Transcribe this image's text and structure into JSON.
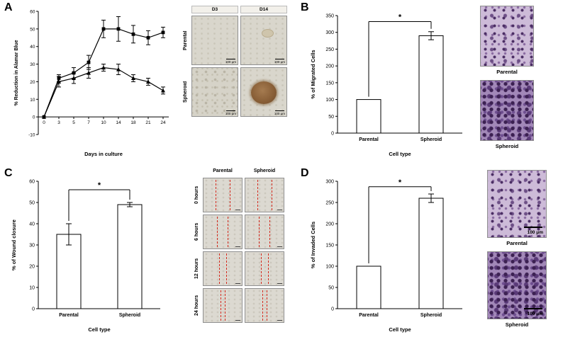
{
  "figure": {
    "panel_labels": {
      "A": "A",
      "B": "B",
      "C": "C",
      "D": "D"
    },
    "panels": {
      "A": {
        "micrographs": {
          "col_headers": [
            "D3",
            "D14"
          ],
          "row_labels": [
            "Parental",
            "Spheroid"
          ],
          "scale_label": "100 μm"
        }
      },
      "B": {
        "micrographs": {
          "labels": [
            "Parental",
            "Spheroid"
          ]
        }
      },
      "C": {
        "micrographs": {
          "col_headers": [
            "Parental",
            "Spheroid"
          ],
          "row_labels": [
            "0 hours",
            "6 hours",
            "12 hours",
            "24 hours"
          ]
        }
      },
      "D": {
        "micrographs": {
          "labels": [
            "Parental",
            "Spheroid"
          ],
          "scale_label": "100 μm"
        }
      }
    }
  },
  "chart_data": [
    {
      "id": "A",
      "type": "line",
      "x": [
        0,
        3,
        5,
        7,
        10,
        14,
        18,
        21,
        24
      ],
      "xlabel": "Days in culture",
      "ylabel": "% Reduction in Alamar Blue",
      "ylim": [
        -10,
        60
      ],
      "yticks": [
        -10,
        0,
        10,
        20,
        30,
        40,
        50,
        60
      ],
      "series": [
        {
          "name": "square-marker-series",
          "marker": "square",
          "values": [
            0,
            22,
            25,
            31,
            50,
            50,
            47,
            45,
            48
          ],
          "errors": [
            0,
            2,
            3,
            4,
            5,
            7,
            5,
            4,
            3
          ]
        },
        {
          "name": "triangle-marker-series",
          "marker": "triangle",
          "values": [
            0,
            20,
            22,
            25,
            28,
            27,
            22,
            20,
            15
          ],
          "errors": [
            0,
            3,
            3,
            3,
            2,
            3,
            2,
            2,
            2
          ]
        }
      ]
    },
    {
      "id": "B",
      "type": "bar",
      "categories": [
        "Parental",
        "Spheroid"
      ],
      "values": [
        100,
        290
      ],
      "errors": [
        0,
        12
      ],
      "xlabel": "Cell type",
      "ylabel": "% of Migrated Cells",
      "ylim": [
        0,
        350
      ],
      "yticks": [
        0,
        50,
        100,
        150,
        200,
        250,
        300,
        350
      ],
      "significance": {
        "label": "*",
        "y": 332
      }
    },
    {
      "id": "C",
      "type": "bar",
      "categories": [
        "Parental",
        "Spheroid"
      ],
      "values": [
        35,
        49
      ],
      "errors": [
        5,
        1
      ],
      "xlabel": "Cell type",
      "ylabel": "% of Wound closure",
      "ylim": [
        0,
        60
      ],
      "yticks": [
        0,
        10,
        20,
        30,
        40,
        50,
        60
      ],
      "significance": {
        "label": "*",
        "y": 56
      }
    },
    {
      "id": "D",
      "type": "bar",
      "categories": [
        "Parental",
        "Spheroid"
      ],
      "values": [
        100,
        260
      ],
      "errors": [
        0,
        10
      ],
      "xlabel": "Cell type",
      "ylabel": "% of Invaded Cells",
      "ylim": [
        0,
        300
      ],
      "yticks": [
        0,
        50,
        100,
        150,
        200,
        250,
        300
      ],
      "significance": {
        "label": "*",
        "y": 287
      }
    }
  ]
}
